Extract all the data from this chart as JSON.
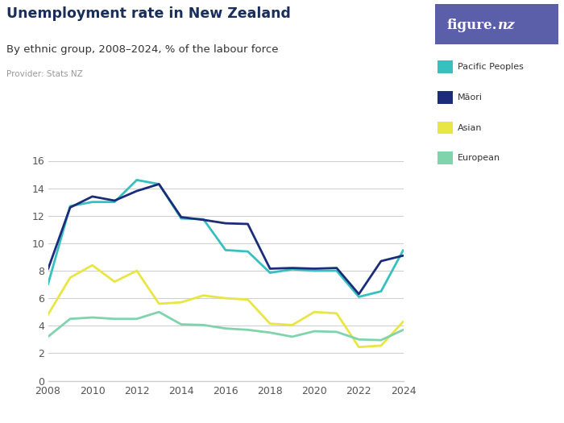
{
  "title": "Unemployment rate in New Zealand",
  "subtitle": "By ethnic group, 2008–2024, % of the labour force",
  "provider": "Provider: Stats NZ",
  "ylim": [
    0,
    16
  ],
  "yticks": [
    0,
    2,
    4,
    6,
    8,
    10,
    12,
    14,
    16
  ],
  "xticks": [
    2008,
    2010,
    2012,
    2014,
    2016,
    2018,
    2020,
    2022,
    2024
  ],
  "background_color": "#ffffff",
  "logo_bg_color": "#5B5EA8",
  "logo_text": "figure.nz",
  "title_color": "#1a2e5a",
  "subtitle_color": "#333333",
  "provider_color": "#999999",
  "grid_color": "#d0d0d0",
  "tick_color": "#555555",
  "series": {
    "Pacific Peoples": {
      "color": "#38C0C0",
      "years": [
        2008,
        2009,
        2010,
        2011,
        2012,
        2013,
        2014,
        2015,
        2016,
        2017,
        2018,
        2019,
        2020,
        2021,
        2022,
        2023,
        2024
      ],
      "values": [
        7.0,
        12.7,
        13.0,
        13.0,
        14.6,
        14.3,
        11.8,
        11.75,
        9.5,
        9.4,
        7.85,
        8.1,
        8.0,
        8.0,
        6.1,
        6.5,
        9.5
      ]
    },
    "Māori": {
      "color": "#1B2D7A",
      "years": [
        2008,
        2009,
        2010,
        2011,
        2012,
        2013,
        2014,
        2015,
        2016,
        2017,
        2018,
        2019,
        2020,
        2021,
        2022,
        2023,
        2024
      ],
      "values": [
        8.1,
        12.6,
        13.4,
        13.1,
        13.8,
        14.3,
        11.9,
        11.7,
        11.45,
        11.4,
        8.15,
        8.2,
        8.15,
        8.2,
        6.3,
        8.7,
        9.1
      ]
    },
    "Asian": {
      "color": "#E8E645",
      "years": [
        2008,
        2009,
        2010,
        2011,
        2012,
        2013,
        2014,
        2015,
        2016,
        2017,
        2018,
        2019,
        2020,
        2021,
        2022,
        2023,
        2024
      ],
      "values": [
        4.8,
        7.5,
        8.4,
        7.2,
        8.0,
        5.6,
        5.7,
        6.2,
        6.0,
        5.9,
        4.15,
        4.05,
        5.0,
        4.9,
        2.45,
        2.55,
        4.3
      ]
    },
    "European": {
      "color": "#80D4AD",
      "years": [
        2008,
        2009,
        2010,
        2011,
        2012,
        2013,
        2014,
        2015,
        2016,
        2017,
        2018,
        2019,
        2020,
        2021,
        2022,
        2023,
        2024
      ],
      "values": [
        3.2,
        4.5,
        4.6,
        4.5,
        4.5,
        5.0,
        4.1,
        4.05,
        3.8,
        3.7,
        3.5,
        3.2,
        3.6,
        3.55,
        3.0,
        2.95,
        3.7
      ]
    }
  },
  "legend_order": [
    "Pacific Peoples",
    "Māori",
    "Asian",
    "European"
  ]
}
